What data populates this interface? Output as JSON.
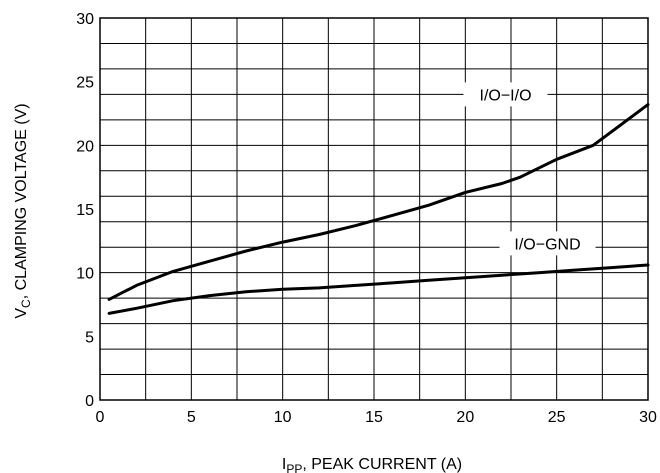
{
  "chart_data": {
    "type": "line",
    "ylabel_main": "V",
    "ylabel_sub": "C",
    "ylabel_rest": ", CLAMPING VOLTAGE (V)",
    "xlabel_main": "I",
    "xlabel_sub": "PP",
    "xlabel_rest": ", PEAK CURRENT (A)",
    "xlim": [
      0,
      30
    ],
    "ylim": [
      0,
      30
    ],
    "grid": true,
    "x_ticks": [
      "0",
      "5",
      "10",
      "15",
      "20",
      "25",
      "30"
    ],
    "y_ticks": [
      "0",
      "5",
      "10",
      "15",
      "20",
      "25",
      "30"
    ],
    "series": [
      {
        "name": "I/O−I/O",
        "x": [
          0.5,
          2,
          4,
          6,
          8,
          10,
          12,
          14,
          16,
          18,
          20,
          22,
          23,
          25,
          27,
          28.5,
          30
        ],
        "y": [
          7.9,
          9.0,
          10.1,
          10.9,
          11.7,
          12.4,
          13.0,
          13.7,
          14.5,
          15.3,
          16.3,
          17.0,
          17.5,
          18.9,
          20.0,
          21.6,
          23.2
        ]
      },
      {
        "name": "I/O−GND",
        "x": [
          0.5,
          2,
          4,
          6,
          8,
          10,
          12,
          14,
          16,
          18,
          20,
          22,
          24,
          26,
          28,
          30
        ],
        "y": [
          6.8,
          7.2,
          7.8,
          8.2,
          8.5,
          8.7,
          8.8,
          9.0,
          9.2,
          9.4,
          9.6,
          9.8,
          10.0,
          10.2,
          10.4,
          10.6
        ]
      }
    ]
  }
}
